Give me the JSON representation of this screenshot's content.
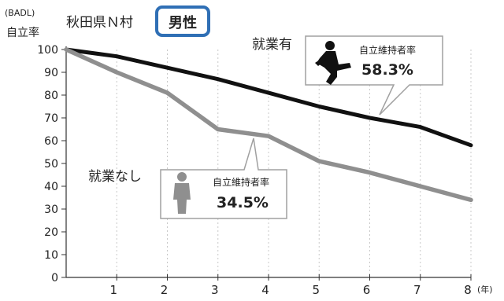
{
  "header": {
    "y_unit_line1": "(BADL)",
    "y_unit_line2": "自立率",
    "region": "秋田県Ｎ村",
    "gender_badge": "男性"
  },
  "colors": {
    "employed_line": "#111111",
    "unemployed_line": "#8f8f8f",
    "badge_border": "#2f6fb5",
    "grid": "#c8c8c8",
    "axis": "#333333",
    "callout_border": "#a0a0a0"
  },
  "chart_data": {
    "type": "line",
    "x": [
      0,
      1,
      2,
      3,
      4,
      5,
      6,
      7,
      8
    ],
    "xticks": [
      "1",
      "2",
      "3",
      "4",
      "5",
      "6",
      "7",
      "8"
    ],
    "x_unit": "(年)",
    "yticks": [
      0,
      10,
      20,
      30,
      40,
      50,
      60,
      70,
      80,
      90,
      100
    ],
    "xlim": [
      0,
      8
    ],
    "ylim": [
      0,
      100
    ],
    "grid": "vertical-dotted",
    "series": [
      {
        "name": "就業有",
        "color": "#111111",
        "values": [
          100,
          97,
          92,
          87,
          81,
          75,
          70,
          66,
          58
        ]
      },
      {
        "name": "就業なし",
        "color": "#8f8f8f",
        "values": [
          100,
          90,
          81,
          65,
          62,
          51,
          46,
          40,
          34
        ]
      }
    ],
    "annotations": [
      {
        "series": "就業有",
        "label": "自立維持者率",
        "value": "58.3%"
      },
      {
        "series": "就業なし",
        "label": "自立維持者率",
        "value": "34.5%"
      }
    ]
  }
}
